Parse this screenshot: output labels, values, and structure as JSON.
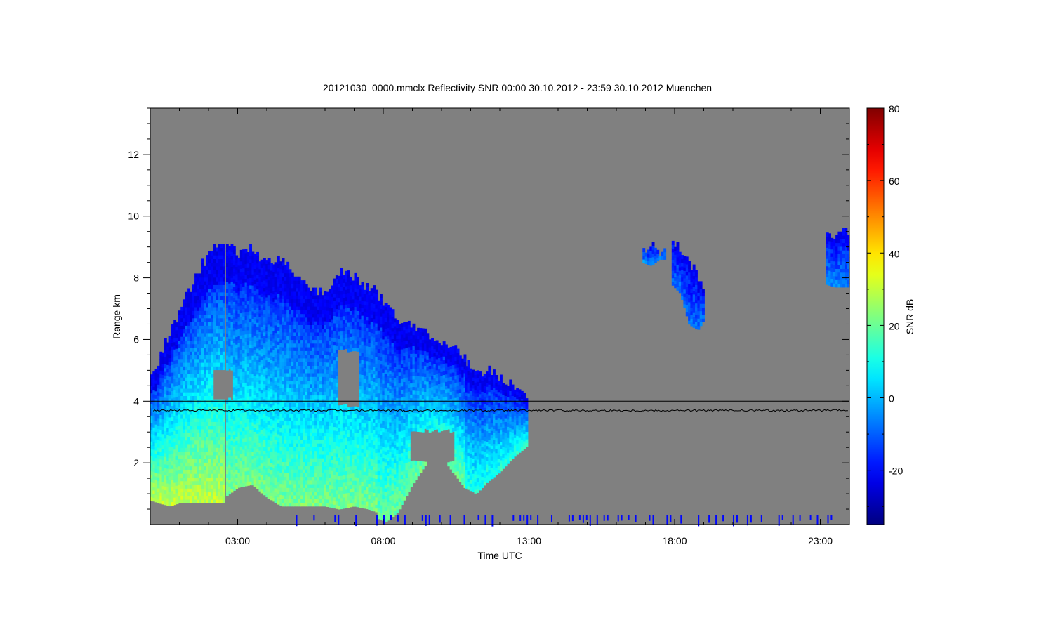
{
  "chart_data": {
    "type": "heatmap",
    "title": "20121030_0000.mmclx Reflectivity SNR   00:00 30.10.2012 - 23:59 30.10.2012 Muenchen",
    "xlabel": "Time UTC",
    "ylabel": "Range km",
    "colorbar_label": "SNR dB",
    "x_unit": "hours UTC",
    "xlim": [
      0.0,
      24.0
    ],
    "ylim": [
      0.0,
      13.5
    ],
    "x_ticks": [
      {
        "value": 3,
        "label": "03:00"
      },
      {
        "value": 8,
        "label": "08:00"
      },
      {
        "value": 13,
        "label": "13:00"
      },
      {
        "value": 18,
        "label": "18:00"
      },
      {
        "value": 23,
        "label": "23:00"
      }
    ],
    "y_ticks": [
      2,
      4,
      6,
      8,
      10,
      12
    ],
    "colorbar": {
      "range": [
        -35,
        80
      ],
      "ticks": [
        -20,
        0,
        20,
        40,
        60,
        80
      ],
      "colormap": "jet"
    },
    "background_color": "#808080",
    "reference_lines": [
      {
        "name": "",
        "range_km": 4.0,
        "color": "#000000"
      },
      {
        "name": "",
        "range_km": 3.7,
        "color": "#000000",
        "jitter_km": 0.03
      }
    ],
    "echo_regions": [
      {
        "time_range": [
          0.0,
          2.6
        ],
        "base_snr": 30,
        "profile": [
          [
            0.0,
            0.8,
            4.8
          ],
          [
            0.3,
            0.7,
            5.3
          ],
          [
            0.7,
            0.6,
            6.2
          ],
          [
            1.0,
            0.7,
            6.8
          ],
          [
            1.3,
            0.7,
            7.4
          ],
          [
            1.7,
            0.7,
            8.2
          ],
          [
            2.1,
            0.7,
            8.9
          ],
          [
            2.6,
            0.7,
            9.0
          ]
        ]
      },
      {
        "time_range": [
          2.6,
          7.8
        ],
        "base_snr": 22,
        "profile": [
          [
            2.6,
            0.9,
            9.0
          ],
          [
            3.0,
            1.2,
            8.8
          ],
          [
            3.5,
            1.3,
            8.8
          ],
          [
            4.0,
            0.9,
            8.4
          ],
          [
            4.5,
            0.6,
            8.5
          ],
          [
            5.0,
            0.6,
            8.0
          ],
          [
            5.5,
            0.6,
            7.6
          ],
          [
            6.0,
            0.6,
            7.5
          ],
          [
            6.5,
            0.5,
            8.2
          ],
          [
            7.0,
            0.6,
            8.0
          ],
          [
            7.5,
            0.5,
            7.6
          ],
          [
            7.8,
            0.4,
            7.4
          ]
        ]
      },
      {
        "time_range": [
          7.8,
          10.8
        ],
        "base_snr": 20,
        "profile": [
          [
            7.8,
            0.2,
            7.4
          ],
          [
            8.1,
            0.1,
            7.0
          ],
          [
            8.5,
            0.4,
            6.6
          ],
          [
            9.0,
            1.3,
            6.4
          ],
          [
            9.5,
            2.0,
            6.1
          ],
          [
            10.0,
            2.2,
            5.9
          ],
          [
            10.4,
            1.7,
            5.7
          ],
          [
            10.8,
            1.2,
            5.3
          ]
        ]
      },
      {
        "time_range": [
          10.8,
          13.0
        ],
        "base_snr": 12,
        "profile": [
          [
            10.8,
            1.2,
            5.3
          ],
          [
            11.2,
            1.0,
            4.8
          ],
          [
            11.6,
            1.4,
            5.0
          ],
          [
            12.0,
            1.7,
            4.7
          ],
          [
            12.5,
            2.2,
            4.4
          ],
          [
            13.0,
            2.6,
            4.0
          ]
        ]
      },
      {
        "time_range": [
          16.9,
          17.7
        ],
        "base_snr": -5,
        "profile": [
          [
            16.9,
            8.5,
            8.9
          ],
          [
            17.2,
            8.4,
            9.0
          ],
          [
            17.5,
            8.6,
            8.8
          ],
          [
            17.7,
            8.6,
            8.8
          ]
        ]
      },
      {
        "time_range": [
          17.9,
          19.0
        ],
        "base_snr": -8,
        "profile": [
          [
            17.9,
            7.8,
            9.1
          ],
          [
            18.2,
            7.5,
            8.9
          ],
          [
            18.5,
            6.5,
            8.4
          ],
          [
            18.8,
            6.3,
            8.0
          ],
          [
            19.0,
            6.6,
            7.7
          ]
        ]
      },
      {
        "time_range": [
          23.2,
          24.0
        ],
        "base_snr": -5,
        "profile": [
          [
            23.2,
            7.8,
            9.5
          ],
          [
            23.5,
            7.7,
            9.2
          ],
          [
            23.8,
            7.7,
            9.5
          ],
          [
            24.0,
            7.7,
            9.4
          ]
        ]
      }
    ],
    "gaps": [
      {
        "time": [
          2.1,
          2.8
        ],
        "range": [
          4.0,
          5.0
        ]
      },
      {
        "time": [
          8.9,
          10.4
        ],
        "range": [
          2.0,
          3.0
        ]
      },
      {
        "time": [
          6.4,
          7.1
        ],
        "range": [
          3.8,
          5.6
        ]
      }
    ]
  }
}
